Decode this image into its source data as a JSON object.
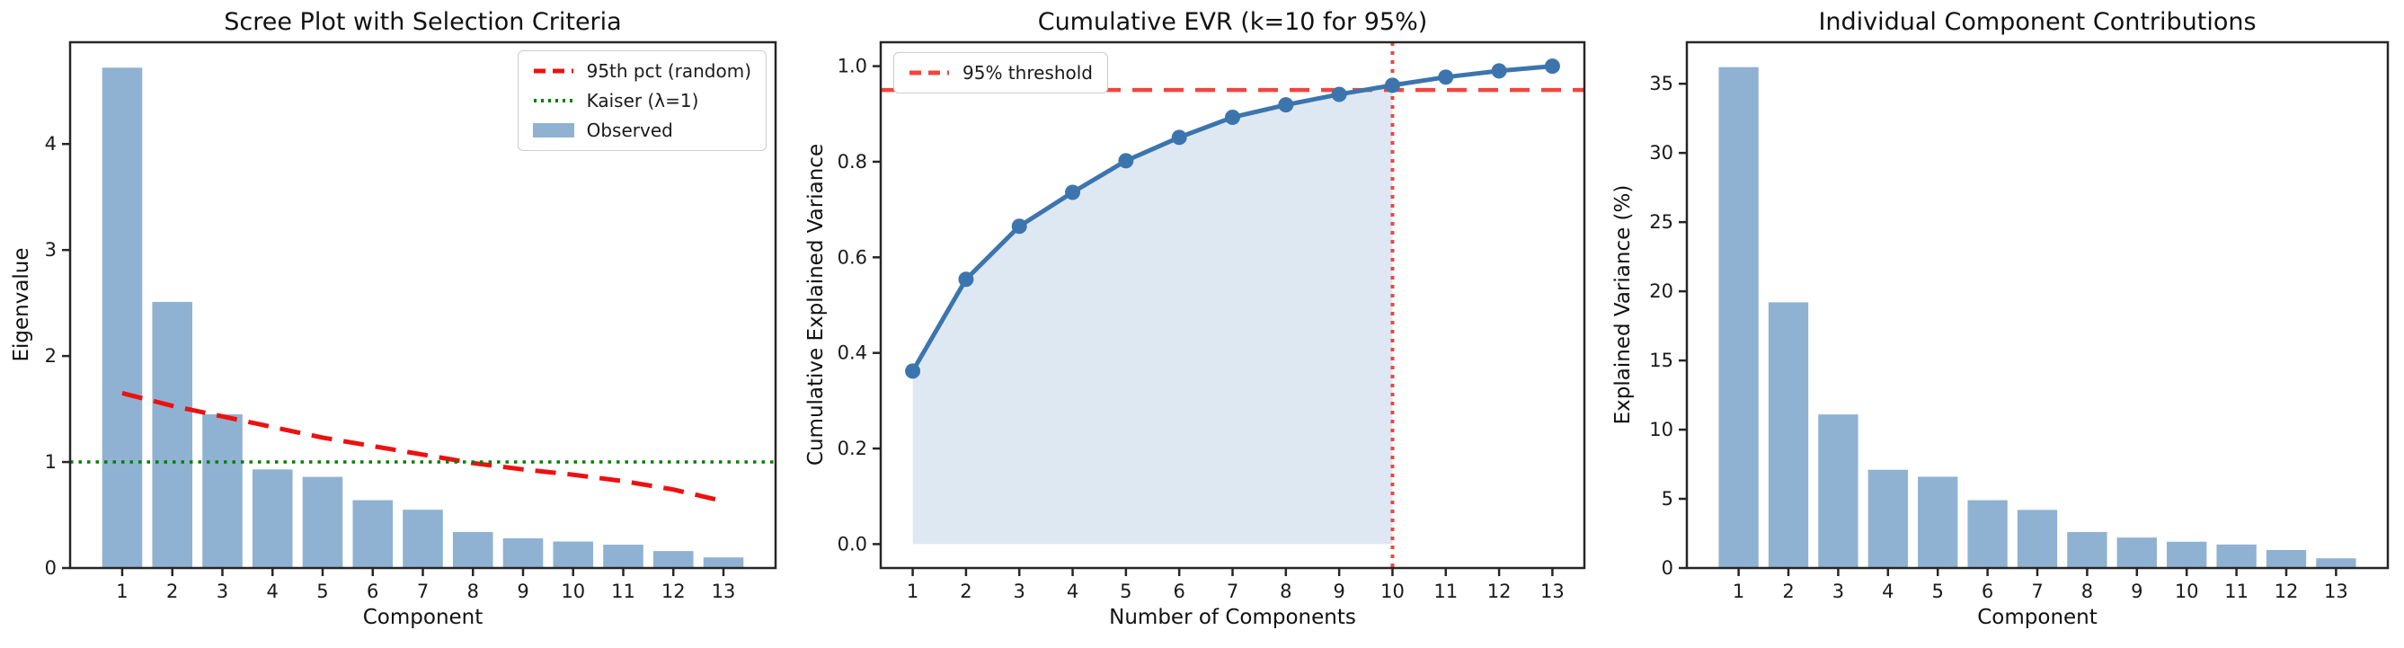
{
  "figure": {
    "background": "#ffffff",
    "text_color": "#1a1a1a",
    "spine_color": "#262626"
  },
  "chart_data": [
    {
      "type": "bar",
      "title": "Scree Plot with Selection Criteria",
      "xlabel": "Component",
      "ylabel": "Eigenvalue",
      "categories": [
        1,
        2,
        3,
        4,
        5,
        6,
        7,
        8,
        9,
        10,
        11,
        12,
        13
      ],
      "values": [
        4.72,
        2.51,
        1.45,
        0.93,
        0.86,
        0.64,
        0.55,
        0.34,
        0.28,
        0.25,
        0.22,
        0.16,
        0.1
      ],
      "bar_color": "#8FB2D3",
      "xlim": [
        -0.04,
        14.04
      ],
      "ylim": [
        0,
        4.96
      ],
      "yticks": [
        0,
        1,
        2,
        3,
        4
      ],
      "xticks": [
        1,
        2,
        3,
        4,
        5,
        6,
        7,
        8,
        9,
        10,
        11,
        12,
        13
      ],
      "grid": false,
      "overlays": [
        {
          "name": "95th pct (random)",
          "kind": "line",
          "style": "dashed",
          "color": "#EE1010",
          "x": [
            1,
            2,
            3,
            4,
            5,
            6,
            7,
            8,
            9,
            10,
            11,
            12,
            13
          ],
          "y": [
            1.65,
            1.53,
            1.43,
            1.33,
            1.23,
            1.15,
            1.07,
            0.99,
            0.93,
            0.88,
            0.82,
            0.74,
            0.63
          ]
        },
        {
          "name": "Kaiser (λ=1)",
          "kind": "hline",
          "style": "dotted",
          "color": "#007F00",
          "y": 1
        }
      ],
      "legend_position": "upper right",
      "legend": [
        {
          "label": "95th pct (random)",
          "glyph": "dashed-red-line"
        },
        {
          "label": "Kaiser (λ=1)",
          "glyph": "dotted-green-line"
        },
        {
          "label": "Observed",
          "glyph": "blue-swatch"
        }
      ]
    },
    {
      "type": "line",
      "title": "Cumulative EVR (k=10 for 95%)",
      "xlabel": "Number of Components",
      "ylabel": "Cumulative Explained Variance",
      "x": [
        1,
        2,
        3,
        4,
        5,
        6,
        7,
        8,
        9,
        10,
        11,
        12,
        13
      ],
      "y": [
        0.362,
        0.554,
        0.665,
        0.736,
        0.802,
        0.851,
        0.893,
        0.919,
        0.941,
        0.96,
        0.977,
        0.99,
        1.0
      ],
      "line_color": "#3C75AD",
      "marker": "circle",
      "marker_size": 8.5,
      "fill_color": "#DEE8F2",
      "fill_x_range": [
        1,
        10
      ],
      "threshold_line": {
        "y": 0.95,
        "style": "dashed",
        "color": "#F2453F",
        "label": "95% threshold"
      },
      "vline": {
        "x": 10,
        "style": "dotted",
        "color": "#F2453F"
      },
      "xlim": [
        0.4,
        13.6
      ],
      "ylim": [
        -0.05,
        1.05
      ],
      "yticks": [
        0.0,
        0.2,
        0.4,
        0.6,
        0.8,
        1.0
      ],
      "ytick_decimals": 1,
      "xticks": [
        1,
        2,
        3,
        4,
        5,
        6,
        7,
        8,
        9,
        10,
        11,
        12,
        13
      ],
      "grid": false,
      "legend_position": "upper left",
      "legend": [
        {
          "label": "95% threshold",
          "glyph": "dashed-red-line"
        }
      ]
    },
    {
      "type": "bar",
      "title": "Individual Component Contributions",
      "xlabel": "Component",
      "ylabel": "Explained Variance (%)",
      "categories": [
        1,
        2,
        3,
        4,
        5,
        6,
        7,
        8,
        9,
        10,
        11,
        12,
        13
      ],
      "values": [
        36.2,
        19.2,
        11.1,
        7.1,
        6.6,
        4.9,
        4.2,
        2.6,
        2.2,
        1.9,
        1.7,
        1.3,
        0.7
      ],
      "bar_color": "#8FB2D3",
      "xlim": [
        -0.04,
        14.04
      ],
      "ylim": [
        0,
        38.0
      ],
      "yticks": [
        0,
        5,
        10,
        15,
        20,
        25,
        30,
        35
      ],
      "xticks": [
        1,
        2,
        3,
        4,
        5,
        6,
        7,
        8,
        9,
        10,
        11,
        12,
        13
      ],
      "grid": false,
      "legend": []
    }
  ]
}
